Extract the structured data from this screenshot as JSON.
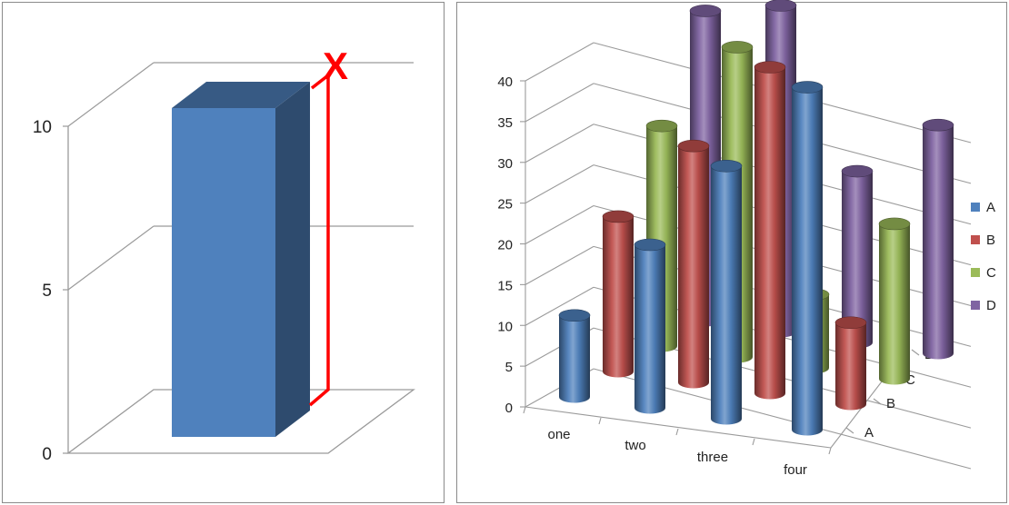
{
  "chart_data": [
    {
      "type": "bar",
      "style": "3d-column",
      "title": "",
      "xlabel": "",
      "ylabel": "",
      "ylim": [
        0,
        10
      ],
      "yticks": [
        "0",
        "5",
        "10"
      ],
      "grid": true,
      "series": [
        {
          "color": "#4f81bd",
          "values": [
            10
          ]
        }
      ],
      "annotation": {
        "text": "X",
        "color": "#ff0000"
      }
    },
    {
      "type": "bar",
      "style": "3d-cylinder",
      "title": "",
      "xlabel": "",
      "ylabel": "",
      "ylim": [
        0,
        40
      ],
      "yticks": [
        "0",
        "5",
        "10",
        "15",
        "20",
        "25",
        "30",
        "35",
        "40"
      ],
      "categories": [
        "one",
        "two",
        "three",
        "four"
      ],
      "depth_categories": [
        "A",
        "B",
        "C",
        "D"
      ],
      "grid": true,
      "legend": "right",
      "series": [
        {
          "name": "A",
          "color": "#4f81bd",
          "values": [
            10,
            20,
            31,
            42
          ]
        },
        {
          "name": "B",
          "color": "#c0504d",
          "values": [
            19,
            29,
            40,
            10
          ]
        },
        {
          "name": "C",
          "color": "#9bbb59",
          "values": [
            27,
            38,
            9,
            19
          ]
        },
        {
          "name": "D",
          "color": "#8064a2",
          "values": [
            38,
            40,
            21,
            28
          ]
        }
      ]
    }
  ]
}
